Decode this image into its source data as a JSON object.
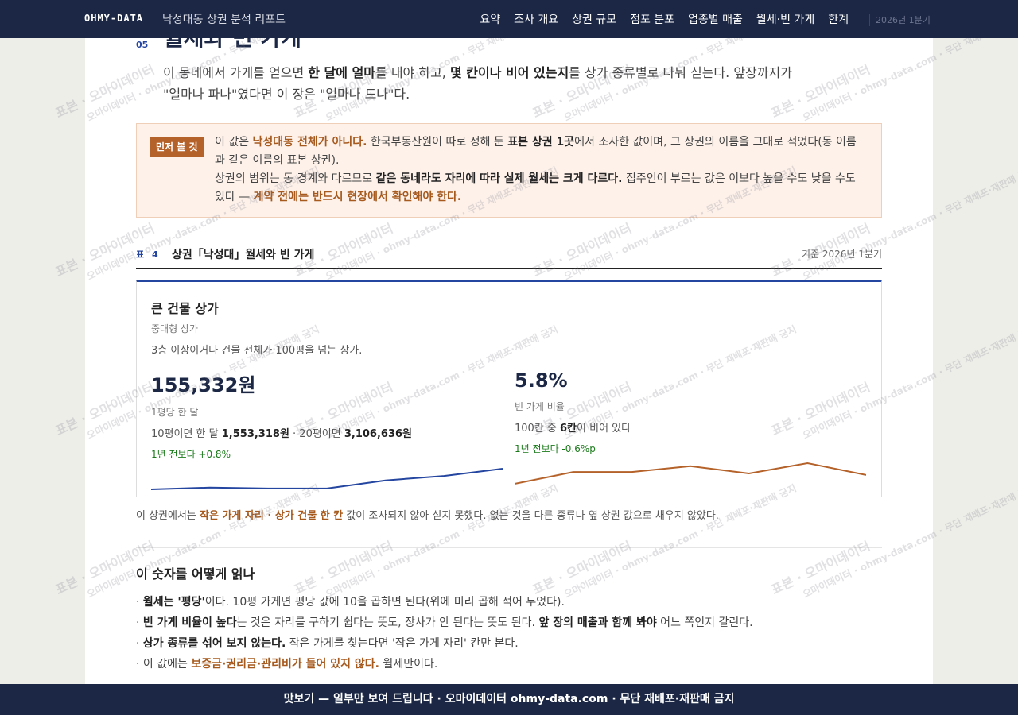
{
  "header": {
    "brand": "OHMY-DATA",
    "report_title": "낙성대동 상권 분석 리포트",
    "nav": [
      "요약",
      "조사 개요",
      "상권 규모",
      "점포 분포",
      "업종별 매출",
      "월세·빈 가게",
      "한계"
    ],
    "period": "2026년 1분기"
  },
  "section": {
    "number": "05",
    "title": "월세와 빈 가게",
    "intro": [
      "이 동네에서 가게를 얻으면 ",
      "한 달에 얼마",
      "를 내야 하고, ",
      "몇 칸이나 비어 있는지",
      "를 상가 종류별로 나눠 싣는다. 앞장까지가 \"얼마나 파나\"였다면 이 장은 \"얼마나 드나\"다."
    ]
  },
  "notice": {
    "badge": "먼저 볼 것",
    "p1": [
      "이 값은 ",
      "낙성대동 전체가 아니다.",
      " 한국부동산원이 따로 정해 둔 ",
      "표본 상권 1곳",
      "에서 조사한 값이며, 그 상권의 이름을 그대로 적었다(동 이름과 같은 이름의 표본 상권)."
    ],
    "p2": [
      "상권의 범위는 동 경계와 다르므로 ",
      "같은 동네라도 자리에 따라 실제 월세는 크게 다르다.",
      " 집주인이 부르는 값은 이보다 높을 수도 낮을 수도 있다 — ",
      "계약 전에는 반드시 현장에서 확인해야 한다."
    ]
  },
  "table": {
    "label": "표 4",
    "title": "상권「낙성대」월세와 빈 가게",
    "basis": "기준 2026년 1분기",
    "card": {
      "title": "큰 건물 상가",
      "subtitle": "중대형 상가",
      "desc": "3층 이상이거나 건물 전체가 100평을 넘는 상가.",
      "rent": {
        "value": "155,332원",
        "caption": "1평당 한 달",
        "detail": [
          "10평이면 한 달 ",
          "1,553,318원",
          " · 20평이면 ",
          "3,106,636원"
        ],
        "change": "1년 전보다 +0.8%",
        "trend": [
          153700,
          153840,
          153770,
          153770,
          154410,
          154760,
          155332
        ],
        "color": "#2445a0"
      },
      "vacancy": {
        "value": "5.8%",
        "caption": "빈 가게 비율",
        "detail": [
          "100칸 중 ",
          "6칸",
          "이 비어 있다"
        ],
        "change": "1년 전보다 -0.6%p",
        "trend": [
          5.2,
          6.0,
          6.0,
          6.4,
          5.9,
          6.6,
          5.8
        ],
        "color": "#b5622a"
      }
    }
  },
  "missing_note": [
    "이 상권에서는 ",
    "작은 가게 자리 · 상가 건물 한 칸",
    " 값이 조사되지 않아 싣지 못했다. 없는 것을 다른 종류나 옆 상권 값으로 채우지 않았다."
  ],
  "howto": {
    "title": "이 숫자를 어떻게 읽나",
    "items": [
      [
        "· ",
        "월세는 '평당'",
        "이다. 10평 가게면 평당 값에 10을 곱하면 된다(위에 미리 곱해 적어 두었다)."
      ],
      [
        "· ",
        "빈 가게 비율이 높다",
        "는 것은 자리를 구하기 쉽다는 뜻도, 장사가 안 된다는 뜻도 된다. ",
        "앞 장의 매출과 함께 봐야",
        " 어느 쪽인지 갈린다."
      ],
      [
        "· ",
        "상가 종류를 섞어 보지 않는다.",
        " 작은 가게를 찾는다면 '작은 가게 자리' 칸만 본다."
      ],
      [
        "· 이 값에는 ",
        "보증금·권리금·관리비가 들어 있지 않다.",
        " 월세만이다."
      ]
    ]
  },
  "watermark": [
    "표본 · 오마이데이터",
    "오마이데이터 · ohmy-data.com · 무단 재배포·재판매 금지"
  ],
  "footer": "맛보기 — 일부만 보여 드립니다 · 오마이데이터 ohmy-data.com · 무단 재배포·재판매 금지"
}
